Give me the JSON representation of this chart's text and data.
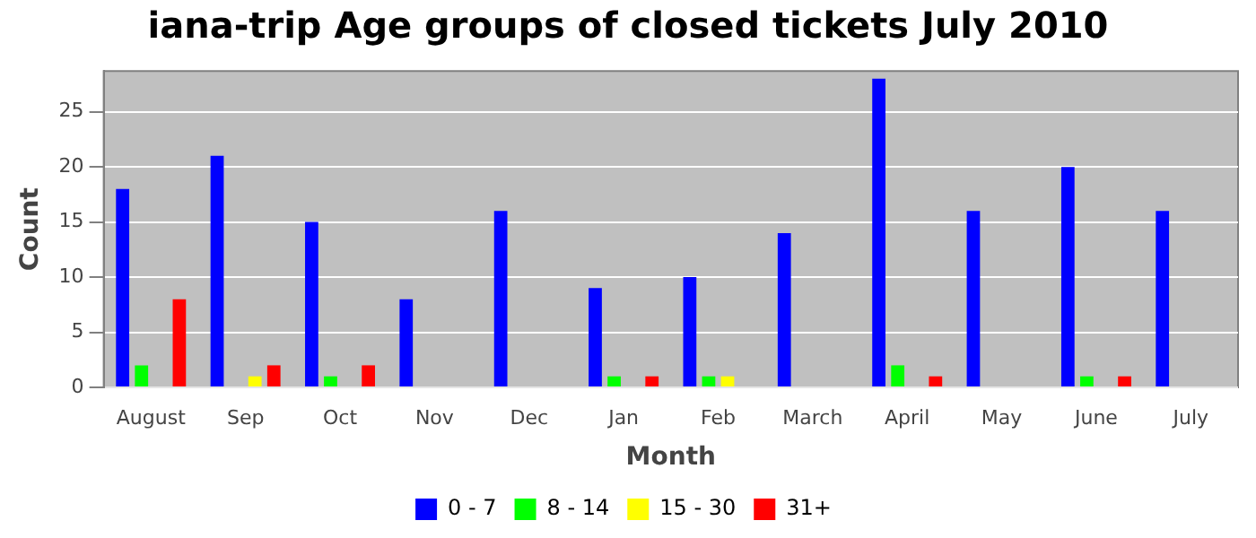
{
  "chart_data": {
    "type": "bar",
    "title": "iana-trip Age groups of closed tickets July 2010",
    "xlabel": "Month",
    "ylabel": "Count",
    "categories": [
      "August",
      "Sep",
      "Oct",
      "Nov",
      "Dec",
      "Jan",
      "Feb",
      "March",
      "April",
      "May",
      "June",
      "July"
    ],
    "series": [
      {
        "name": "0 - 7",
        "color": "#0000ff",
        "values": [
          18,
          21,
          15,
          8,
          16,
          9,
          10,
          14,
          28,
          16,
          20,
          16
        ]
      },
      {
        "name": "8 - 14",
        "color": "#00ff00",
        "values": [
          2,
          0,
          1,
          0,
          0,
          1,
          1,
          0,
          2,
          0,
          1,
          0
        ]
      },
      {
        "name": "15 - 30",
        "color": "#ffff00",
        "values": [
          0,
          1,
          0,
          0,
          0,
          0,
          1,
          0,
          0,
          0,
          0,
          0
        ]
      },
      {
        "name": "31+",
        "color": "#ff0000",
        "values": [
          8,
          2,
          2,
          0,
          0,
          1,
          0,
          0,
          1,
          0,
          1,
          0
        ]
      }
    ],
    "ylim": [
      0,
      28.7
    ],
    "yticks": [
      0,
      5,
      10,
      15,
      20,
      25
    ],
    "grid": "y",
    "legend": "bottom"
  }
}
